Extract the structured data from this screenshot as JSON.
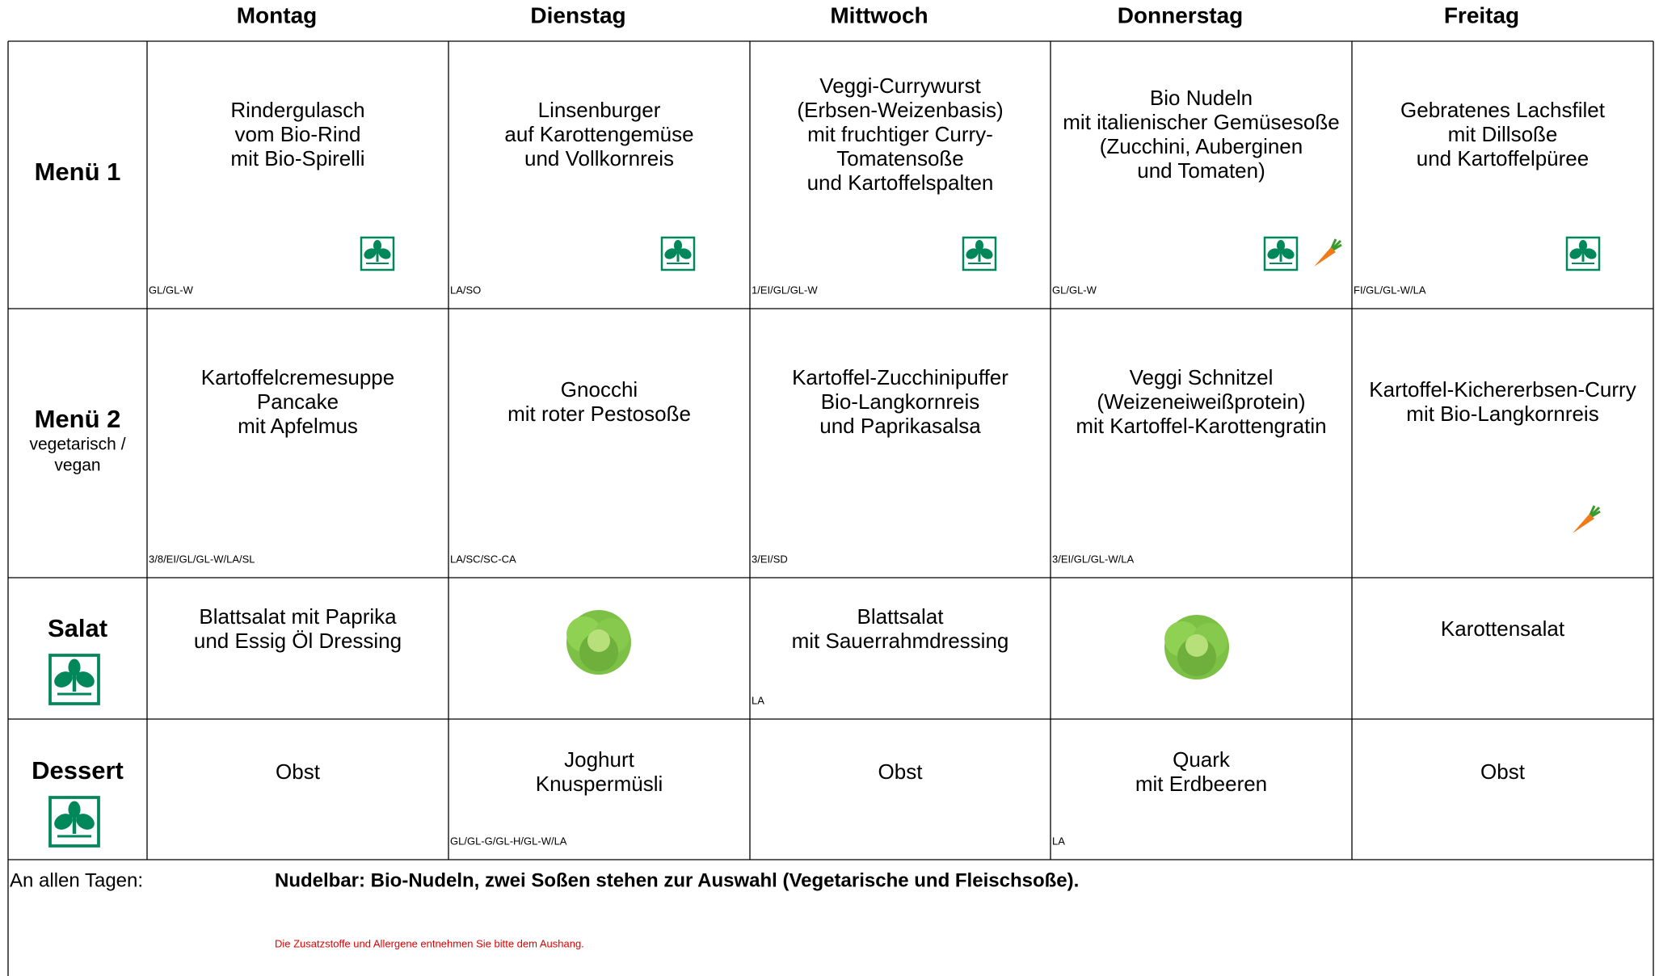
{
  "days": [
    "Montag",
    "Dienstag",
    "Mittwoch",
    "Donnerstag",
    "Freitag"
  ],
  "rows": [
    {
      "label": "Menü 1",
      "cells": [
        {
          "lines": [
            "Rindergulasch",
            "vom Bio-Rind",
            "mit Bio-Spirelli"
          ],
          "allergens": "GL/GL-W"
        },
        {
          "lines": [
            "Linsenburger",
            "auf Karottengemüse",
            "und Vollkornreis"
          ],
          "allergens": "LA/SO"
        },
        {
          "lines": [
            "Veggi-Currywurst",
            "(Erbsen-Weizenbasis)",
            "mit fruchtiger Curry-",
            "Tomatensoße",
            "und Kartoffelspalten"
          ],
          "allergens": "1/EI/GL/GL-W"
        },
        {
          "lines": [
            "Bio Nudeln",
            "mit italienischer Gemüsesoße",
            "(Zucchini, Auberginen",
            "und Tomaten)"
          ],
          "allergens": "GL/GL-W"
        },
        {
          "lines": [
            "Gebratenes Lachsfilet",
            "mit Dillsoße",
            "und Kartoffelpüree"
          ],
          "allergens": "FI/GL/GL-W/LA"
        }
      ]
    },
    {
      "label": "Menü 2",
      "sublabel": [
        "vegetarisch /",
        "vegan"
      ],
      "cells": [
        {
          "lines": [
            "Kartoffelcremesuppe",
            "Pancake",
            "mit Apfelmus"
          ],
          "allergens": "3/8/EI/GL/GL-W/LA/SL"
        },
        {
          "lines": [
            "Gnocchi",
            "mit roter Pestosoße"
          ],
          "allergens": "LA/SC/SC-CA"
        },
        {
          "lines": [
            "Kartoffel-Zucchinipuffer",
            "Bio-Langkornreis",
            "und Paprikasalsa"
          ],
          "allergens": "3/EI/SD"
        },
        {
          "lines": [
            "Veggi Schnitzel",
            "(Weizeneiweißprotein)",
            "mit Kartoffel-Karottengratin"
          ],
          "allergens": "3/EI/GL/GL-W/LA"
        },
        {
          "lines": [
            "Kartoffel-Kichererbsen-Curry",
            "mit Bio-Langkornreis"
          ]
        }
      ]
    },
    {
      "label": "Salat",
      "cells": [
        {
          "lines": [
            "Blattsalat mit Paprika",
            "und Essig Öl Dressing"
          ]
        },
        {},
        {
          "lines": [
            "Blattsalat",
            "mit Sauerrahmdressing"
          ],
          "allergens": "LA"
        },
        {},
        {
          "lines": [
            "Karottensalat"
          ]
        }
      ]
    },
    {
      "label": "Dessert",
      "cells": [
        {
          "lines": [
            "Obst"
          ]
        },
        {
          "lines": [
            "Joghurt",
            "Knuspermüsli"
          ],
          "allergens": "GL/GL-G/GL-H/GL-W/LA"
        },
        {
          "lines": [
            "Obst"
          ]
        },
        {
          "lines": [
            "Quark",
            "mit Erdbeeren"
          ],
          "allergens": "LA"
        },
        {
          "lines": [
            "Obst"
          ]
        }
      ]
    }
  ],
  "footer": {
    "label": "An allen Tagen:",
    "text": "Nudelbar: Bio-Nudeln, zwei Soßen stehen zur Auswahl (Vegetarische und Fleischsoße).",
    "note": "Die Zusatzstoffe und Allergene entnehmen Sie bitte dem Aushang."
  }
}
